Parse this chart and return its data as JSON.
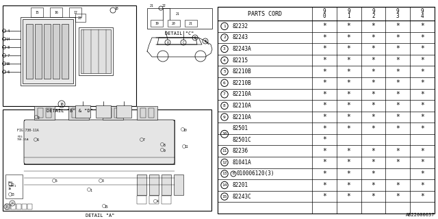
{
  "diagram_label": "AB22000037",
  "table_header_main": "PARTS CORD",
  "year_cols": [
    "9\n0",
    "9\n1",
    "9\n2",
    "9\n3",
    "9\n4"
  ],
  "rows": [
    {
      "num": "1",
      "part": "82232",
      "cols": [
        1,
        1,
        1,
        1,
        1
      ]
    },
    {
      "num": "2",
      "part": "82243",
      "cols": [
        1,
        1,
        1,
        1,
        1
      ]
    },
    {
      "num": "3",
      "part": "82243A",
      "cols": [
        1,
        1,
        1,
        1,
        1
      ]
    },
    {
      "num": "4",
      "part": "82215",
      "cols": [
        1,
        1,
        1,
        1,
        1
      ]
    },
    {
      "num": "5",
      "part": "82210B",
      "cols": [
        1,
        1,
        1,
        1,
        1
      ]
    },
    {
      "num": "6",
      "part": "82210B",
      "cols": [
        1,
        1,
        1,
        1,
        1
      ]
    },
    {
      "num": "7",
      "part": "82210A",
      "cols": [
        1,
        1,
        1,
        1,
        1
      ]
    },
    {
      "num": "8",
      "part": "82210A",
      "cols": [
        1,
        1,
        1,
        1,
        1
      ]
    },
    {
      "num": "9",
      "part": "82210A",
      "cols": [
        1,
        1,
        1,
        1,
        1
      ]
    },
    {
      "num": "10a",
      "part": "82501",
      "cols": [
        1,
        1,
        1,
        1,
        1
      ]
    },
    {
      "num": "10b",
      "part": "82501C",
      "cols": [
        1,
        0,
        0,
        0,
        0
      ]
    },
    {
      "num": "11",
      "part": "82236",
      "cols": [
        1,
        1,
        1,
        1,
        1
      ]
    },
    {
      "num": "12",
      "part": "81041A",
      "cols": [
        1,
        1,
        1,
        1,
        1
      ]
    },
    {
      "num": "13",
      "part": "010006120(3)",
      "cols": [
        1,
        1,
        1,
        0,
        1
      ]
    },
    {
      "num": "14",
      "part": "82201",
      "cols": [
        1,
        1,
        1,
        1,
        1
      ]
    },
    {
      "num": "15",
      "part": "82243C",
      "cols": [
        1,
        1,
        1,
        1,
        1
      ]
    }
  ],
  "bg_color": "#ffffff",
  "detail_b_label": "DETAIL \"B\" & \"D\"",
  "detail_a_label": "DETAIL \"A\"",
  "detail_c_label": "DETAIL \"C\""
}
